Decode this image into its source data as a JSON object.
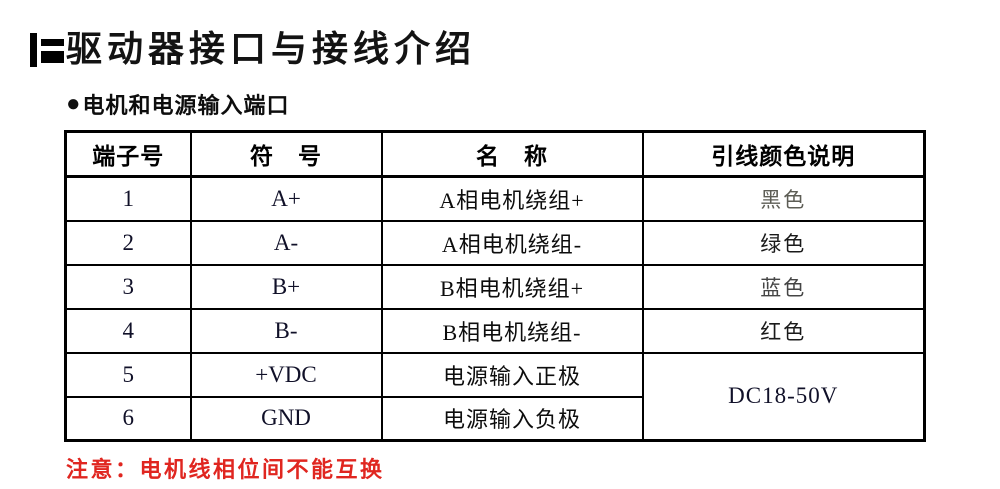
{
  "page": {
    "title": "驱动器接口与接线介绍",
    "section_bullet": "●",
    "section_title": "电机和电源输入端口",
    "note": "注意：电机线相位间不能互换"
  },
  "colors": {
    "body_text": "#0d0d0d",
    "note_red": "#e02620",
    "wire_black_label_gray": "#5d5d55",
    "wire_blue_label_gray": "#454545"
  },
  "table": {
    "headers": {
      "terminal": "端子号",
      "symbol": "符　号",
      "name": "名　称",
      "wire_color": "引线颜色说明"
    },
    "rows": [
      {
        "terminal": "1",
        "symbol": "A+",
        "name": "A相电机绕组+",
        "wire_color": "黑色"
      },
      {
        "terminal": "2",
        "symbol": "A-",
        "name": "A相电机绕组-",
        "wire_color": "绿色"
      },
      {
        "terminal": "3",
        "symbol": "B+",
        "name": "B相电机绕组+",
        "wire_color": "蓝色"
      },
      {
        "terminal": "4",
        "symbol": "B-",
        "name": "B相电机绕组-",
        "wire_color": "红色"
      },
      {
        "terminal": "5",
        "symbol": "+VDC",
        "name": "电源输入正极"
      },
      {
        "terminal": "6",
        "symbol": "GND",
        "name": "电源输入负极"
      }
    ],
    "power_supply_range": "DC18-50V"
  }
}
